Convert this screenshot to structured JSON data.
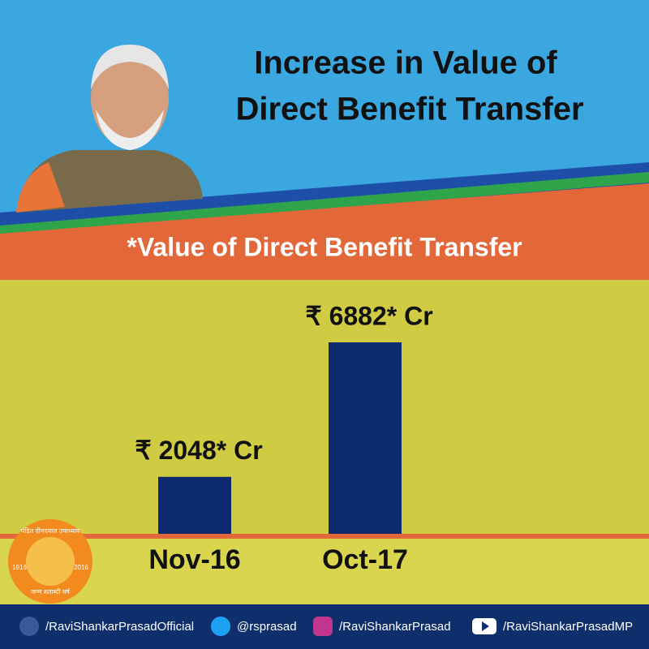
{
  "chart_data": {
    "type": "bar",
    "title": [
      "Increase in Value of",
      "Direct Benefit Transfer"
    ],
    "subtitle": "*Value of Direct Benefit Transfer",
    "categories": [
      "Nov-16",
      "Oct-17"
    ],
    "values": [
      2048,
      6882
    ],
    "value_labels": [
      "₹ 2048* Cr",
      "₹ 6882* Cr"
    ],
    "color": "#0d2a6e"
  },
  "logo": {
    "top": "पंडित दीनदयाल उपाध्याय",
    "left_year": "1916",
    "right_year": "2016",
    "bottom": "जन्म शताब्दी वर्ष"
  },
  "footer": [
    "/RaviShankarPrasadOfficial",
    "@rsprasad",
    "/RaviShankarPrasad",
    "/RaviShankarPrasadMP"
  ]
}
